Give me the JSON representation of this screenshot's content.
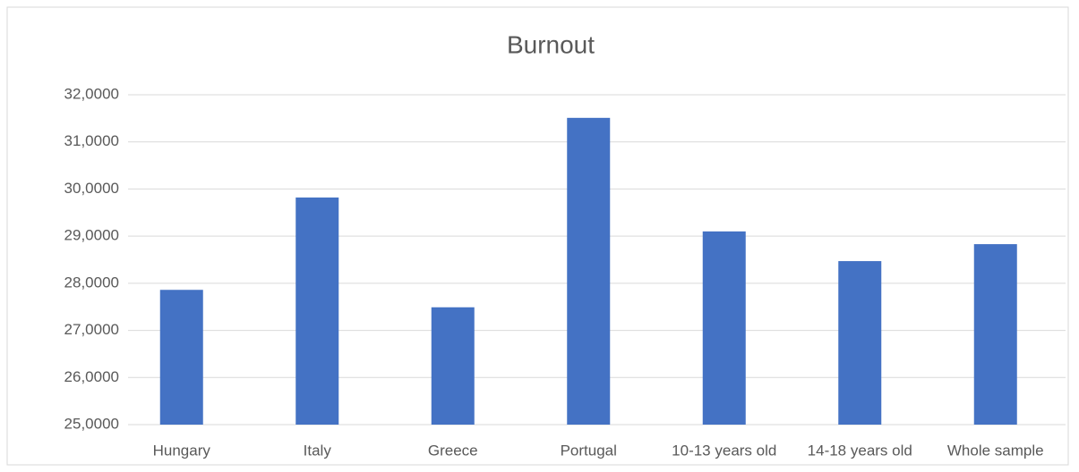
{
  "chart_data": {
    "type": "bar",
    "title": "Burnout",
    "categories": [
      "Hungary",
      "Italy",
      "Greece",
      "Portugal",
      "10-13 years old",
      "14-18 years old",
      "Whole sample"
    ],
    "values": [
      27.86,
      29.82,
      27.49,
      31.51,
      29.1,
      28.47,
      28.83
    ],
    "color": "#4472c4",
    "ylim": [
      25,
      32
    ],
    "yticks": [
      {
        "value": 25,
        "label": "25,0000"
      },
      {
        "value": 26,
        "label": "26,0000"
      },
      {
        "value": 27,
        "label": "27,0000"
      },
      {
        "value": 28,
        "label": "28,0000"
      },
      {
        "value": 29,
        "label": "29,0000"
      },
      {
        "value": 30,
        "label": "30,0000"
      },
      {
        "value": 31,
        "label": "31,0000"
      },
      {
        "value": 32,
        "label": "32,0000"
      }
    ],
    "grid": true
  }
}
